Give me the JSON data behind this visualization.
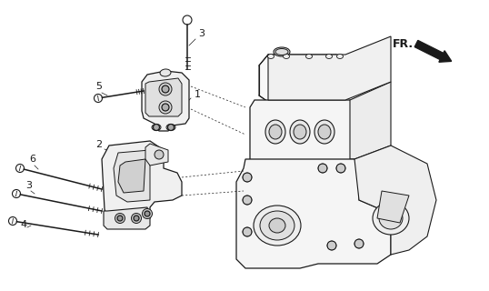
{
  "bg_color": "#ffffff",
  "line_color": "#1a1a1a",
  "fr_label": "FR.",
  "figsize": [
    5.38,
    3.2
  ],
  "dpi": 100
}
